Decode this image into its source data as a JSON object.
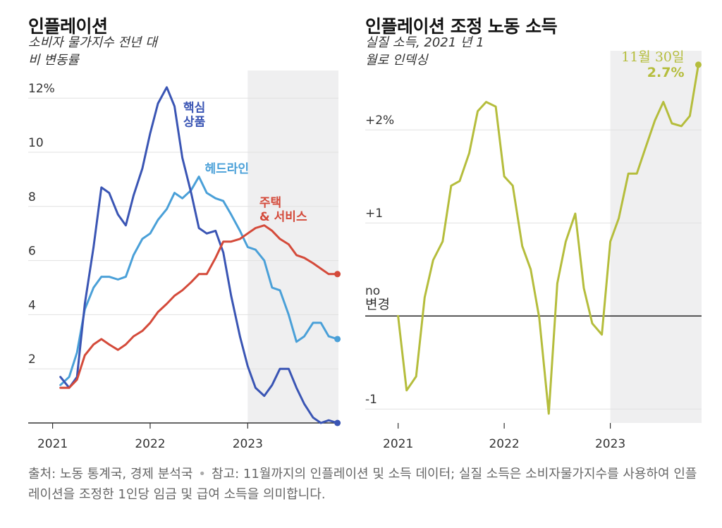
{
  "chart_data": [
    {
      "type": "line",
      "title": "인플레이션",
      "subtitle_lines": [
        "소비자 물가지수 전년 대",
        "비 변동률"
      ],
      "x_ticks": [
        {
          "x": 2021,
          "label": "2021"
        },
        {
          "x": 2022,
          "label": "2022"
        },
        {
          "x": 2023,
          "label": "2023"
        }
      ],
      "y_ticks": [
        {
          "y": 12,
          "label": "12%"
        },
        {
          "y": 10,
          "label": "10"
        },
        {
          "y": 8,
          "label": "8"
        },
        {
          "y": 6,
          "label": "6"
        },
        {
          "y": 4,
          "label": "4"
        },
        {
          "y": 2,
          "label": "2"
        }
      ],
      "xlim": [
        2020.75,
        2023.93
      ],
      "ylim": [
        0,
        12.5
      ],
      "shaded_from": 2023.0,
      "series": [
        {
          "name": "헤드라인",
          "color": "#4aa0d8",
          "label_lines": [
            "헤드라인"
          ],
          "label_anchor": {
            "x": 2022.56,
            "y": 9.25
          },
          "x": [
            2021.08,
            2021.17,
            2021.25,
            2021.33,
            2021.42,
            2021.5,
            2021.58,
            2021.67,
            2021.75,
            2021.83,
            2021.92,
            2022.0,
            2022.08,
            2022.17,
            2022.25,
            2022.33,
            2022.42,
            2022.5,
            2022.58,
            2022.67,
            2022.75,
            2022.83,
            2022.92,
            2023.0,
            2023.08,
            2023.17,
            2023.25,
            2023.33,
            2023.42,
            2023.5,
            2023.58,
            2023.67,
            2023.75,
            2023.83,
            2023.92
          ],
          "values": [
            1.4,
            1.7,
            2.6,
            4.2,
            5.0,
            5.4,
            5.4,
            5.3,
            5.4,
            6.2,
            6.8,
            7.0,
            7.5,
            7.9,
            8.5,
            8.3,
            8.6,
            9.1,
            8.5,
            8.3,
            8.2,
            7.7,
            7.1,
            6.5,
            6.4,
            6.0,
            5.0,
            4.9,
            4.0,
            3.0,
            3.2,
            3.7,
            3.7,
            3.2,
            3.1
          ],
          "end_marker": true
        },
        {
          "name": "핵심 상품",
          "color": "#3a55b4",
          "label_lines": [
            "핵심",
            "상품"
          ],
          "label_anchor": {
            "x": 2022.34,
            "y": 11.5
          },
          "x": [
            2021.08,
            2021.17,
            2021.25,
            2021.33,
            2021.42,
            2021.5,
            2021.58,
            2021.67,
            2021.75,
            2021.83,
            2021.92,
            2022.0,
            2022.08,
            2022.17,
            2022.25,
            2022.33,
            2022.42,
            2022.5,
            2022.58,
            2022.67,
            2022.75,
            2022.83,
            2022.92,
            2023.0,
            2023.08,
            2023.17,
            2023.25,
            2023.33,
            2023.42,
            2023.5,
            2023.58,
            2023.67,
            2023.75,
            2023.83,
            2023.92
          ],
          "values": [
            1.7,
            1.3,
            1.7,
            4.4,
            6.5,
            8.7,
            8.5,
            7.7,
            7.3,
            8.4,
            9.4,
            10.7,
            11.8,
            12.4,
            11.7,
            9.8,
            8.5,
            7.2,
            7.0,
            7.1,
            6.3,
            4.7,
            3.2,
            2.1,
            1.3,
            1.0,
            1.4,
            2.0,
            2.0,
            1.3,
            0.7,
            0.2,
            0.0,
            0.1,
            0.0
          ],
          "end_marker": true
        },
        {
          "name": "주택 & 서비스",
          "color": "#d44a3a",
          "label_lines": [
            "주택",
            "& 서비스"
          ],
          "label_anchor": {
            "x": 2023.12,
            "y": 8.0
          },
          "x": [
            2021.08,
            2021.17,
            2021.25,
            2021.33,
            2021.42,
            2021.5,
            2021.58,
            2021.67,
            2021.75,
            2021.83,
            2021.92,
            2022.0,
            2022.08,
            2022.17,
            2022.25,
            2022.33,
            2022.42,
            2022.5,
            2022.58,
            2022.67,
            2022.75,
            2022.83,
            2022.92,
            2023.0,
            2023.08,
            2023.17,
            2023.25,
            2023.33,
            2023.42,
            2023.5,
            2023.58,
            2023.67,
            2023.75,
            2023.83,
            2023.92
          ],
          "values": [
            1.3,
            1.3,
            1.6,
            2.5,
            2.9,
            3.1,
            2.9,
            2.7,
            2.9,
            3.2,
            3.4,
            3.7,
            4.1,
            4.4,
            4.7,
            4.9,
            5.2,
            5.5,
            5.5,
            6.1,
            6.7,
            6.7,
            6.8,
            7.0,
            7.2,
            7.3,
            7.1,
            6.8,
            6.6,
            6.2,
            6.1,
            5.9,
            5.7,
            5.5,
            5.5
          ],
          "end_marker": true
        }
      ]
    },
    {
      "type": "line",
      "title": "인플레이션 조정 노동 소득",
      "subtitle_lines": [
        "실질 소득, 2021 년 1",
        "월로 인덱싱"
      ],
      "x_ticks": [
        {
          "x": 2021,
          "label": "2021"
        },
        {
          "x": 2022,
          "label": "2022"
        },
        {
          "x": 2023,
          "label": "2023"
        }
      ],
      "y_ticks": [
        {
          "y": 2,
          "label": "+2%"
        },
        {
          "y": 1,
          "label": "+1"
        },
        {
          "y": -1,
          "label": "-1"
        }
      ],
      "zero_label_lines": [
        "no",
        "변경"
      ],
      "xlim": [
        2020.69,
        2023.86
      ],
      "ylim": [
        -1.15,
        2.85
      ],
      "shaded_from": 2023.0,
      "series": [
        {
          "name": "실질 소득",
          "color": "#b5bd3c",
          "x": [
            2021.0,
            2021.08,
            2021.17,
            2021.25,
            2021.33,
            2021.42,
            2021.5,
            2021.58,
            2021.67,
            2021.75,
            2021.83,
            2021.92,
            2022.0,
            2022.08,
            2022.17,
            2022.25,
            2022.33,
            2022.42,
            2022.5,
            2022.58,
            2022.67,
            2022.75,
            2022.83,
            2022.92,
            2023.0,
            2023.08,
            2023.17,
            2023.25,
            2023.33,
            2023.42,
            2023.5,
            2023.58,
            2023.67,
            2023.75,
            2023.83
          ],
          "values": [
            0.0,
            -0.8,
            -0.65,
            0.2,
            0.6,
            0.8,
            1.4,
            1.45,
            1.75,
            2.2,
            2.3,
            2.25,
            1.5,
            1.4,
            0.75,
            0.5,
            -0.02,
            -1.05,
            0.35,
            0.8,
            1.1,
            0.3,
            -0.08,
            -0.2,
            0.8,
            1.05,
            1.53,
            1.53,
            1.8,
            2.1,
            2.3,
            2.07,
            2.04,
            2.15,
            2.7
          ],
          "end_marker": true
        }
      ],
      "annotation": {
        "date": "11월 30일",
        "value": "2.7%"
      }
    }
  ],
  "footer": {
    "source": "출처: 노동 통계국, 경제 분석국",
    "separator": "•",
    "note": "참고: 11월까지의 인플레이션 및 소득 데이터; 실질 소득은 소비자물가지수를 사용하여 인플레이션을 조정한 1인당 임금 및 급여 소득을 의미합니다."
  }
}
